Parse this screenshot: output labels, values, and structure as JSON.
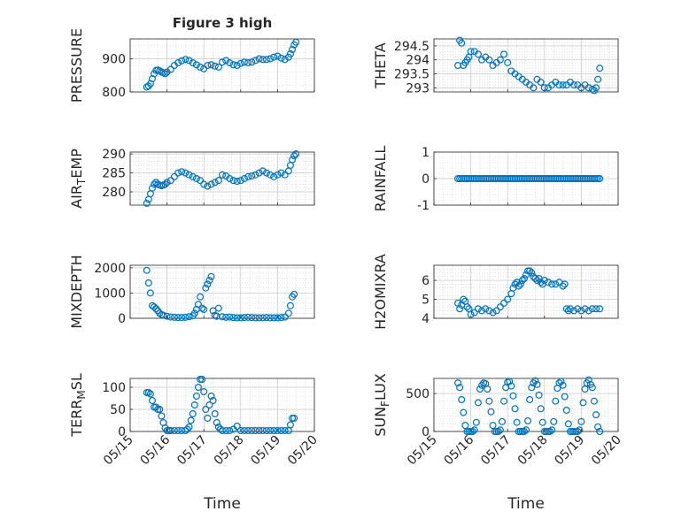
{
  "title": "Figure 3 high",
  "marker_color": "#0072BD",
  "x_tick_labels": [
    "05/15",
    "05/16",
    "05/17",
    "05/18",
    "05/19",
    "05/20"
  ],
  "chart_data": [
    {
      "type": "scatter",
      "ylabel": "PRESSURE",
      "ylim": [
        800,
        960
      ],
      "yticks": [
        800,
        900
      ],
      "ytick_labels": [
        "800",
        "900"
      ],
      "x": [
        15.45,
        15.5,
        15.55,
        15.6,
        15.65,
        15.7,
        15.75,
        15.8,
        15.85,
        15.9,
        15.95,
        16.0,
        16.1,
        16.2,
        16.3,
        16.4,
        16.5,
        16.6,
        16.7,
        16.8,
        16.9,
        17.0,
        17.1,
        17.2,
        17.3,
        17.4,
        17.5,
        17.6,
        17.7,
        17.8,
        17.9,
        18.0,
        18.1,
        18.2,
        18.3,
        18.4,
        18.5,
        18.6,
        18.7,
        18.8,
        18.9,
        19.0,
        19.1,
        19.2,
        19.3,
        19.35,
        19.4,
        19.45,
        19.5
      ],
      "y": [
        815,
        818,
        825,
        840,
        855,
        865,
        866,
        864,
        860,
        858,
        855,
        860,
        868,
        880,
        888,
        894,
        898,
        895,
        888,
        882,
        875,
        870,
        880,
        882,
        878,
        875,
        890,
        895,
        888,
        882,
        880,
        886,
        890,
        888,
        890,
        895,
        900,
        898,
        898,
        900,
        905,
        908,
        902,
        898,
        905,
        915,
        928,
        942,
        950
      ]
    },
    {
      "type": "scatter",
      "ylabel": "THETA",
      "ylim": [
        292.85,
        294.75
      ],
      "yticks": [
        293,
        293.5,
        294,
        294.5
      ],
      "ytick_labels": [
        "293",
        "293.5",
        "294",
        "294.5"
      ],
      "x": [
        15.65,
        15.7,
        15.75,
        15.8,
        15.85,
        15.9,
        15.95,
        16.0,
        16.1,
        16.2,
        16.3,
        16.4,
        16.5,
        16.6,
        16.7,
        16.8,
        16.9,
        17.0,
        17.1,
        17.2,
        17.3,
        17.4,
        17.5,
        17.6,
        17.7,
        17.8,
        17.9,
        18.0,
        18.1,
        18.2,
        18.3,
        18.4,
        18.5,
        18.6,
        18.7,
        18.8,
        18.9,
        19.0,
        19.1,
        19.2,
        19.3,
        19.35,
        19.4,
        19.45,
        19.5
      ],
      "y": [
        293.8,
        294.7,
        294.6,
        293.8,
        293.9,
        294.0,
        294.1,
        294.3,
        294.3,
        294.2,
        294.0,
        294.1,
        294.0,
        293.8,
        293.9,
        294.0,
        294.2,
        293.9,
        293.6,
        293.5,
        293.4,
        293.3,
        293.2,
        293.1,
        293.0,
        293.3,
        293.2,
        293.0,
        293.0,
        293.1,
        293.2,
        293.1,
        293.1,
        293.1,
        293.2,
        293.1,
        293.1,
        293.0,
        293.1,
        293.0,
        292.95,
        292.9,
        293.0,
        293.3,
        293.7
      ]
    },
    {
      "type": "scatter",
      "ylabel": "AIR_TEMP",
      "ylim": [
        276.5,
        290.5
      ],
      "yticks": [
        280,
        285,
        290
      ],
      "ytick_labels": [
        "280",
        "285",
        "290"
      ],
      "x": [
        15.45,
        15.5,
        15.55,
        15.6,
        15.65,
        15.7,
        15.75,
        15.8,
        15.85,
        15.9,
        15.95,
        16.0,
        16.1,
        16.2,
        16.3,
        16.4,
        16.5,
        16.6,
        16.7,
        16.8,
        16.9,
        17.0,
        17.1,
        17.2,
        17.3,
        17.4,
        17.5,
        17.6,
        17.7,
        17.8,
        17.9,
        18.0,
        18.1,
        18.2,
        18.3,
        18.4,
        18.5,
        18.6,
        18.7,
        18.8,
        18.9,
        19.0,
        19.1,
        19.2,
        19.3,
        19.35,
        19.4,
        19.45,
        19.5
      ],
      "y": [
        277.0,
        278.0,
        279.5,
        281.0,
        282.0,
        282.5,
        282.0,
        281.8,
        281.6,
        281.8,
        282.0,
        282.5,
        283.0,
        284.0,
        285.0,
        285.3,
        285.0,
        284.5,
        284.0,
        283.5,
        283.0,
        282.0,
        281.5,
        282.0,
        282.5,
        283.0,
        284.5,
        284.2,
        283.5,
        283.0,
        282.8,
        283.0,
        283.5,
        284.0,
        284.2,
        284.5,
        285.0,
        285.5,
        285.0,
        284.5,
        284.0,
        284.5,
        285.0,
        284.5,
        285.5,
        287.0,
        288.5,
        289.5,
        290.0
      ]
    },
    {
      "type": "scatter",
      "ylabel": "RAINFALL",
      "ylim": [
        -1,
        1
      ],
      "yticks": [
        -1,
        0,
        1
      ],
      "ytick_labels": [
        "-1",
        "0",
        "1"
      ],
      "x": [
        15.65,
        15.7,
        15.75,
        15.8,
        15.85,
        15.9,
        15.95,
        16.0,
        16.05,
        16.1,
        16.15,
        16.2,
        16.25,
        16.3,
        16.35,
        16.4,
        16.45,
        16.5,
        16.55,
        16.6,
        16.65,
        16.7,
        16.75,
        16.8,
        16.85,
        16.9,
        16.95,
        17.0,
        17.05,
        17.1,
        17.15,
        17.2,
        17.25,
        17.3,
        17.35,
        17.4,
        17.45,
        17.5,
        17.55,
        17.6,
        17.65,
        17.7,
        17.75,
        17.8,
        17.85,
        17.9,
        17.95,
        18.0,
        18.05,
        18.1,
        18.15,
        18.2,
        18.25,
        18.3,
        18.35,
        18.4,
        18.45,
        18.5,
        18.55,
        18.6,
        18.65,
        18.7,
        18.75,
        18.8,
        18.85,
        18.9,
        18.95,
        19.0,
        19.05,
        19.1,
        19.15,
        19.2,
        19.25,
        19.3,
        19.35,
        19.4,
        19.45,
        19.5
      ],
      "y": [
        0,
        0,
        0,
        0,
        0,
        0,
        0,
        0,
        0,
        0,
        0,
        0,
        0,
        0,
        0,
        0,
        0,
        0,
        0,
        0,
        0,
        0,
        0,
        0,
        0,
        0,
        0,
        0,
        0,
        0,
        0,
        0,
        0,
        0,
        0,
        0,
        0,
        0,
        0,
        0,
        0,
        0,
        0,
        0,
        0,
        0,
        0,
        0,
        0,
        0,
        0,
        0,
        0,
        0,
        0,
        0,
        0,
        0,
        0,
        0,
        0,
        0,
        0,
        0,
        0,
        0,
        0,
        0,
        0,
        0,
        0,
        0,
        0,
        0,
        0,
        0,
        0,
        0
      ]
    },
    {
      "type": "scatter",
      "ylabel": "MIXDEPTH",
      "ylim": [
        0,
        2100
      ],
      "yticks": [
        0,
        1000,
        2000
      ],
      "ytick_labels": [
        "0",
        "1000",
        "2000"
      ],
      "x": [
        15.45,
        15.5,
        15.55,
        15.6,
        15.65,
        15.7,
        15.75,
        15.8,
        15.85,
        15.9,
        16.0,
        16.1,
        16.2,
        16.3,
        16.4,
        16.5,
        16.6,
        16.7,
        16.75,
        16.8,
        16.85,
        16.9,
        16.95,
        17.0,
        17.05,
        17.1,
        17.15,
        17.2,
        17.25,
        17.3,
        17.35,
        17.4,
        17.5,
        17.6,
        17.7,
        17.8,
        17.9,
        18.0,
        18.1,
        18.2,
        18.3,
        18.4,
        18.5,
        18.6,
        18.7,
        18.8,
        18.9,
        19.0,
        19.1,
        19.2,
        19.3,
        19.35,
        19.4,
        19.45
      ],
      "y": [
        1900,
        1400,
        1000,
        500,
        450,
        380,
        300,
        200,
        150,
        120,
        80,
        50,
        40,
        30,
        30,
        40,
        60,
        100,
        200,
        350,
        550,
        850,
        400,
        350,
        1200,
        1350,
        1500,
        1650,
        300,
        120,
        80,
        400,
        60,
        40,
        50,
        30,
        20,
        20,
        30,
        40,
        30,
        20,
        20,
        20,
        30,
        20,
        20,
        20,
        30,
        50,
        200,
        500,
        850,
        950
      ]
    },
    {
      "type": "scatter",
      "ylabel": "H2OMIXRA",
      "ylim": [
        4,
        6.8
      ],
      "yticks": [
        4,
        5,
        6
      ],
      "ytick_labels": [
        "4",
        "5",
        "6"
      ],
      "x": [
        15.65,
        15.7,
        15.75,
        15.8,
        15.85,
        15.9,
        15.95,
        16.0,
        16.1,
        16.2,
        16.3,
        16.4,
        16.5,
        16.6,
        16.7,
        16.8,
        16.9,
        17.0,
        17.1,
        17.15,
        17.2,
        17.25,
        17.3,
        17.35,
        17.4,
        17.45,
        17.5,
        17.55,
        17.6,
        17.65,
        17.7,
        17.75,
        17.8,
        17.85,
        17.9,
        17.95,
        18.0,
        18.1,
        18.2,
        18.3,
        18.4,
        18.5,
        18.55,
        18.6,
        18.65,
        18.7,
        18.8,
        18.9,
        19.0,
        19.1,
        19.2,
        19.3,
        19.4,
        19.5
      ],
      "y": [
        4.8,
        4.5,
        4.7,
        5.0,
        4.9,
        4.6,
        4.5,
        4.2,
        4.3,
        4.5,
        4.4,
        4.5,
        4.4,
        4.3,
        4.4,
        4.6,
        4.8,
        5.0,
        5.3,
        5.6,
        5.8,
        5.9,
        5.7,
        5.8,
        6.0,
        6.1,
        6.3,
        6.5,
        6.5,
        6.4,
        6.2,
        6.1,
        6.0,
        6.1,
        5.9,
        5.8,
        6.0,
        5.9,
        5.8,
        5.8,
        5.9,
        5.7,
        5.8,
        4.5,
        4.4,
        4.5,
        4.4,
        4.5,
        4.4,
        4.5,
        4.4,
        4.5,
        4.5,
        4.5
      ]
    },
    {
      "type": "scatter",
      "ylabel": "TERR_MSL",
      "ylim": [
        0,
        120
      ],
      "yticks": [
        0,
        50,
        100
      ],
      "ytick_labels": [
        "0",
        "50",
        "100"
      ],
      "x": [
        15.45,
        15.5,
        15.55,
        15.6,
        15.65,
        15.7,
        15.75,
        15.8,
        15.85,
        15.9,
        15.95,
        16.0,
        16.05,
        16.1,
        16.2,
        16.3,
        16.4,
        16.5,
        16.55,
        16.6,
        16.65,
        16.7,
        16.75,
        16.8,
        16.85,
        16.9,
        16.95,
        17.0,
        17.05,
        17.1,
        17.15,
        17.2,
        17.25,
        17.3,
        17.35,
        17.4,
        17.45,
        17.5,
        17.6,
        17.7,
        17.8,
        17.9,
        18.0,
        18.1,
        18.2,
        18.3,
        18.4,
        18.5,
        18.6,
        18.7,
        18.8,
        18.9,
        19.0,
        19.1,
        19.2,
        19.3,
        19.35,
        19.4,
        19.45
      ],
      "y": [
        88,
        88,
        85,
        70,
        55,
        55,
        50,
        50,
        35,
        20,
        8,
        2,
        2,
        2,
        2,
        2,
        2,
        2,
        5,
        10,
        25,
        40,
        60,
        80,
        100,
        118,
        118,
        90,
        50,
        30,
        60,
        80,
        70,
        40,
        20,
        10,
        5,
        2,
        2,
        2,
        5,
        12,
        2,
        2,
        2,
        2,
        2,
        2,
        2,
        2,
        2,
        2,
        2,
        2,
        2,
        2,
        15,
        30,
        30
      ]
    },
    {
      "type": "scatter",
      "ylabel": "SUN_FLUX",
      "ylim": [
        0,
        700
      ],
      "yticks": [
        0,
        500
      ],
      "ytick_labels": [
        "0",
        "500"
      ],
      "x": [
        15.65,
        15.7,
        15.75,
        15.8,
        15.85,
        15.9,
        15.95,
        16.0,
        16.05,
        16.1,
        16.15,
        16.2,
        16.25,
        16.3,
        16.35,
        16.4,
        16.45,
        16.5,
        16.55,
        16.6,
        16.65,
        16.7,
        16.75,
        16.8,
        16.85,
        16.9,
        16.95,
        17.0,
        17.05,
        17.1,
        17.15,
        17.2,
        17.25,
        17.3,
        17.35,
        17.4,
        17.45,
        17.5,
        17.55,
        17.6,
        17.65,
        17.7,
        17.75,
        17.8,
        17.85,
        17.9,
        17.95,
        18.0,
        18.05,
        18.1,
        18.15,
        18.2,
        18.25,
        18.3,
        18.35,
        18.4,
        18.45,
        18.5,
        18.55,
        18.6,
        18.65,
        18.7,
        18.75,
        18.8,
        18.85,
        18.9,
        18.95,
        19.0,
        19.05,
        19.1,
        19.15,
        19.2,
        19.25,
        19.3,
        19.35,
        19.4,
        19.45,
        19.5
      ],
      "y": [
        640,
        580,
        420,
        250,
        80,
        0,
        0,
        0,
        0,
        20,
        120,
        380,
        560,
        610,
        640,
        630,
        560,
        400,
        260,
        80,
        0,
        0,
        0,
        20,
        130,
        400,
        580,
        650,
        660,
        600,
        470,
        300,
        120,
        0,
        0,
        0,
        0,
        20,
        140,
        420,
        580,
        640,
        670,
        620,
        480,
        300,
        120,
        0,
        0,
        0,
        0,
        20,
        130,
        400,
        570,
        640,
        660,
        610,
        460,
        280,
        100,
        0,
        0,
        0,
        0,
        0,
        20,
        130,
        380,
        560,
        640,
        680,
        620,
        580,
        400,
        220,
        60,
        0
      ]
    }
  ]
}
